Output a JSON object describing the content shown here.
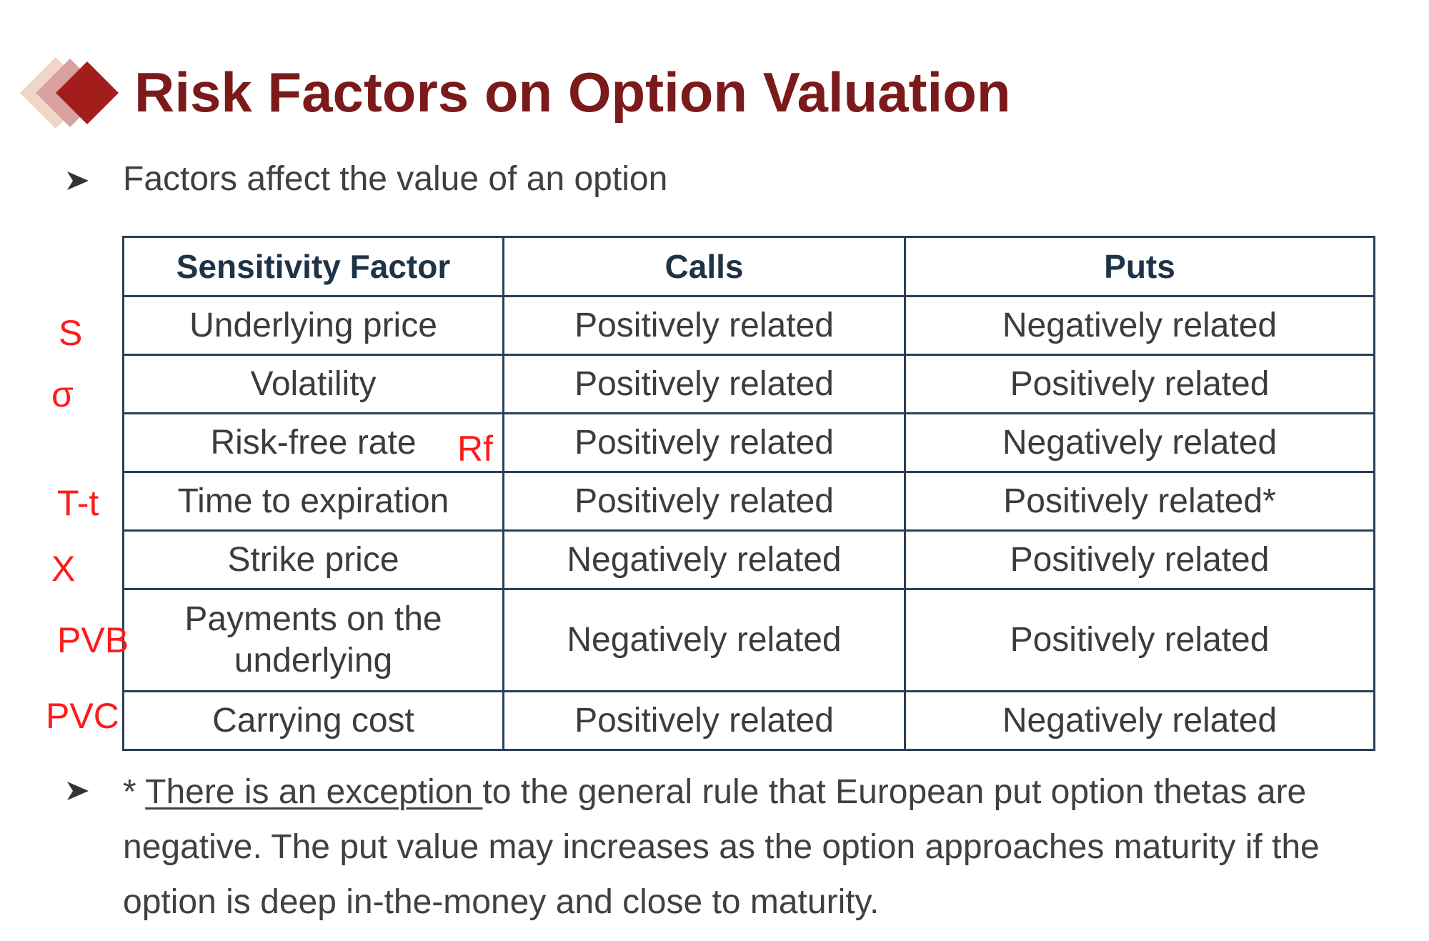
{
  "title": "Risk Factors on Option Valuation",
  "colors": {
    "title": "#7b1a1a",
    "diamond_front": "#a31d1d",
    "diamond_mid": "#d9a0a0",
    "diamond_back": "#f0d6c6",
    "table_border": "#2b3f55",
    "annotation": "#ff1a1a"
  },
  "bullets": {
    "intro": "Factors affect the value of an option",
    "marker_icon": "arrowhead-bullet-icon"
  },
  "table": {
    "headers": [
      "Sensitivity Factor",
      "Calls",
      "Puts"
    ],
    "rows": [
      {
        "factor": "Underlying price",
        "calls": "Positively related",
        "puts": "Negatively related"
      },
      {
        "factor": "Volatility",
        "calls": "Positively related",
        "puts": "Positively related"
      },
      {
        "factor": "Risk-free rate",
        "calls": "Positively related",
        "puts": "Negatively related"
      },
      {
        "factor": "Time to expiration",
        "calls": "Positively related",
        "puts": "Positively related*"
      },
      {
        "factor": "Strike price",
        "calls": "Negatively related",
        "puts": "Positively related"
      },
      {
        "factor": "Payments on the underlying",
        "calls": "Negatively related",
        "puts": "Positively related"
      },
      {
        "factor": "Carrying cost",
        "calls": "Positively related",
        "puts": "Negatively related"
      }
    ]
  },
  "annotations": {
    "s": "S",
    "sigma": "σ",
    "rf": "Rf",
    "t": "T-t",
    "x": "X",
    "pvb": "PVB",
    "pvc": "PVC"
  },
  "footnote": {
    "prefix": "* ",
    "underlined": "There is an exception ",
    "rest": "to the general rule that European put option thetas are negative. The put value may increases as the option approaches maturity if the option is deep in-the-money and close to maturity."
  }
}
